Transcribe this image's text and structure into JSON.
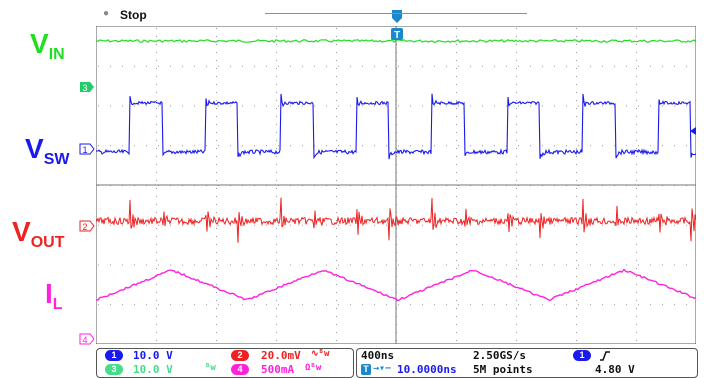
{
  "status": {
    "state": "Stop"
  },
  "signal_labels": {
    "vin": {
      "main": "V",
      "sub": "IN"
    },
    "vsw": {
      "main": "V",
      "sub": "SW"
    },
    "vout": {
      "main": "V",
      "sub": "OUT"
    },
    "il": {
      "main": "I",
      "sub": "L"
    }
  },
  "markers": {
    "ch3": "3",
    "ch1": "1",
    "ch2": "2",
    "ch4": "4",
    "trigger": "T"
  },
  "channels": [
    {
      "id": "1",
      "scale": "10.0 V",
      "color": "#1a1aee"
    },
    {
      "id": "2",
      "scale": "20.0mV",
      "suffix": "∿ᴮw",
      "color": "#ee2222"
    },
    {
      "id": "3",
      "scale": "10.0 V",
      "suffix": "ᴮw",
      "color": "#22cc66"
    },
    {
      "id": "4",
      "scale": "500mA",
      "suffix": "Ωᴮw",
      "color": "#ff22dd"
    }
  ],
  "timebase": {
    "time_div": "400ns",
    "sample_rate": "2.50GS/s",
    "delay": "10.0000ns",
    "record_length": "5M points",
    "trigger_source": "1",
    "trigger_slope": "rising",
    "trigger_level": "4.80 V"
  },
  "colors": {
    "vin": "#22dd22",
    "vsw": "#1a1aee",
    "vout": "#ee2222",
    "il": "#ff22dd",
    "trigger": "#1a88cc",
    "grid": "#999999"
  }
}
